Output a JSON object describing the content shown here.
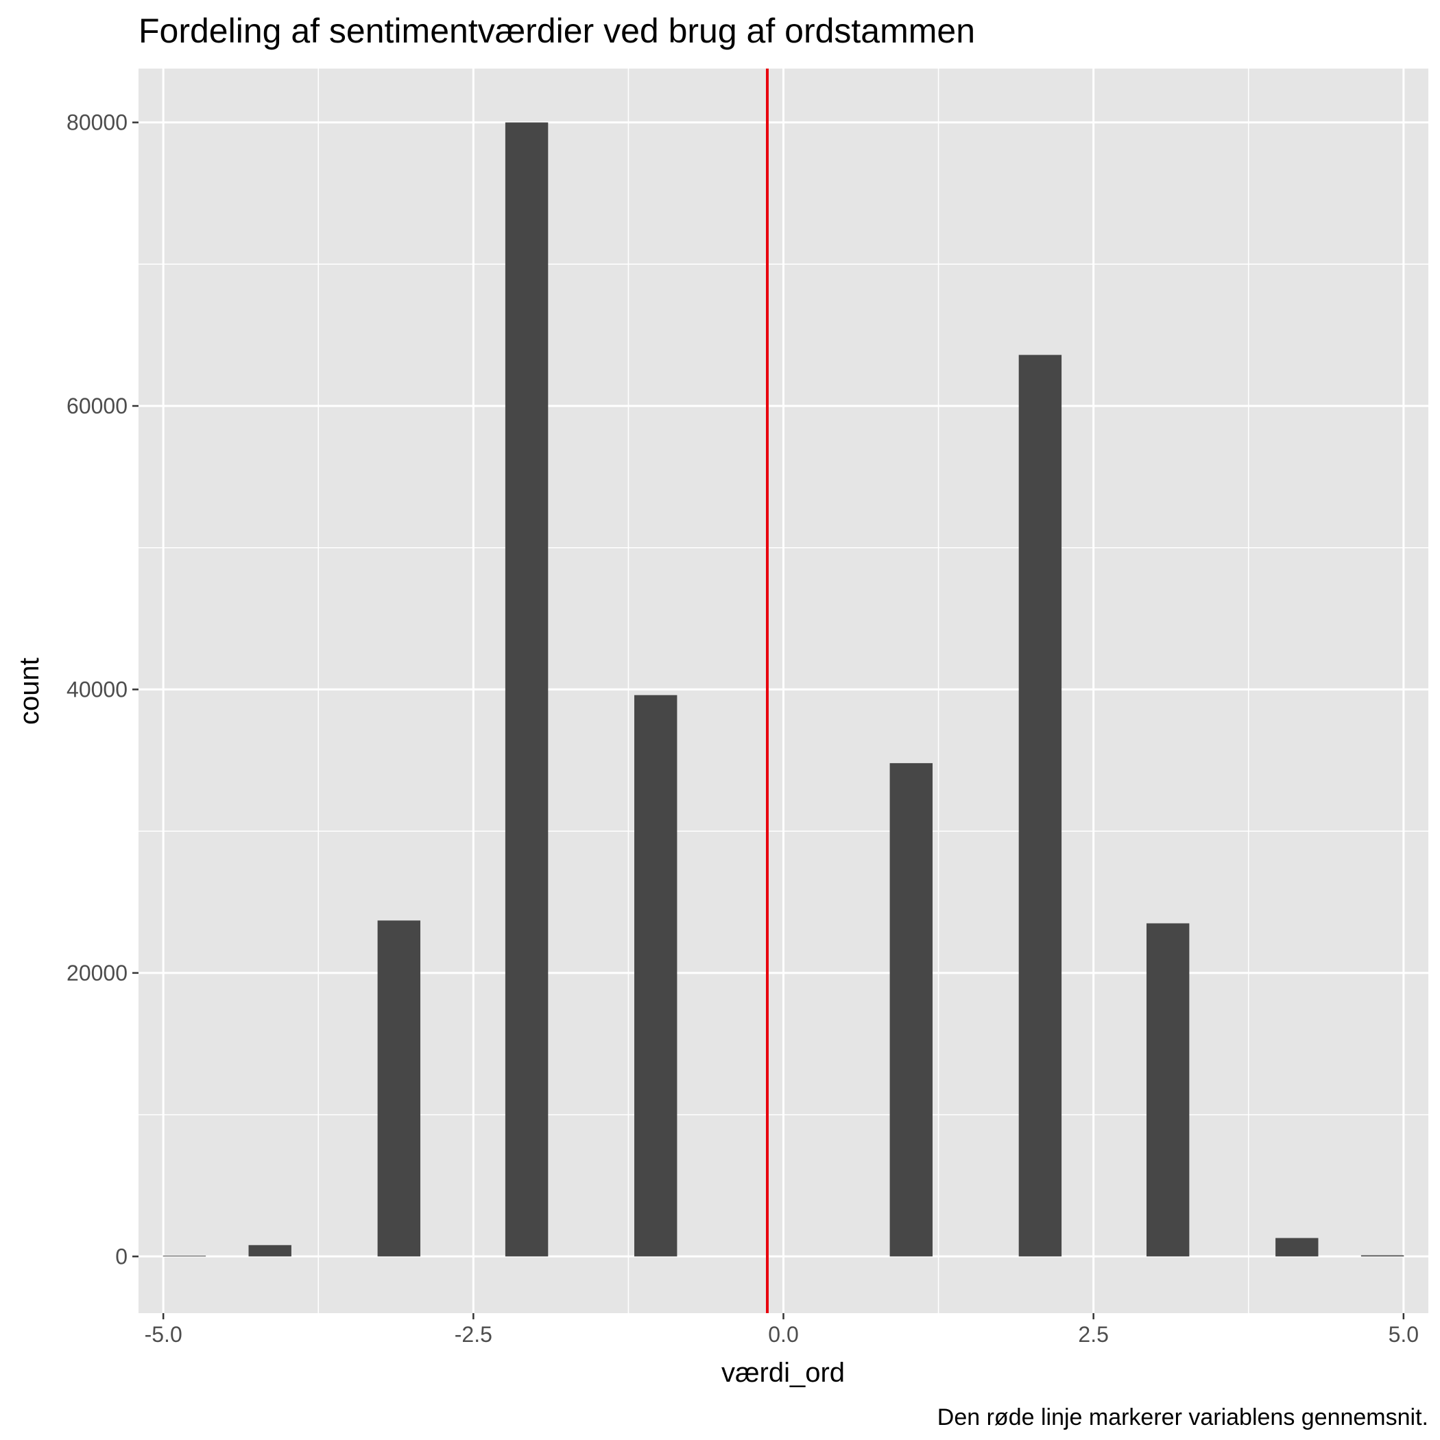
{
  "chart_data": {
    "type": "bar",
    "title": "Fordeling af sentimentværdier ved brug af ordstammen",
    "xlabel": "værdi_ord",
    "ylabel": "count",
    "caption": "Den røde linje markerer variablens gennemsnit.",
    "xlim": [
      -5.2,
      5.2
    ],
    "ylim": [
      -4000,
      83800
    ],
    "x_ticks": [
      -5.0,
      -2.5,
      0.0,
      2.5,
      5.0
    ],
    "x_tick_labels": [
      "-5.0",
      "-2.5",
      "0.0",
      "2.5",
      "5.0"
    ],
    "y_ticks": [
      0,
      20000,
      40000,
      60000,
      80000
    ],
    "y_tick_labels": [
      "0",
      "20000",
      "40000",
      "60000",
      "80000"
    ],
    "bin_width": 0.345,
    "bins": [
      {
        "x": -4.83,
        "count": 50
      },
      {
        "x": -4.14,
        "count": 800
      },
      {
        "x": -3.1,
        "count": 23700
      },
      {
        "x": -2.07,
        "count": 80000
      },
      {
        "x": -1.03,
        "count": 39600
      },
      {
        "x": 1.03,
        "count": 34800
      },
      {
        "x": 2.07,
        "count": 63600
      },
      {
        "x": 3.1,
        "count": 23500
      },
      {
        "x": 4.14,
        "count": 1300
      },
      {
        "x": 4.83,
        "count": 80
      }
    ],
    "mean_line": {
      "x": -0.13,
      "color": "#e8000d"
    },
    "colors": {
      "panel": "#e5e5e5",
      "grid": "#ffffff",
      "bar": "#474747",
      "mean": "#e8000d"
    },
    "grid": true,
    "legend": "none"
  }
}
